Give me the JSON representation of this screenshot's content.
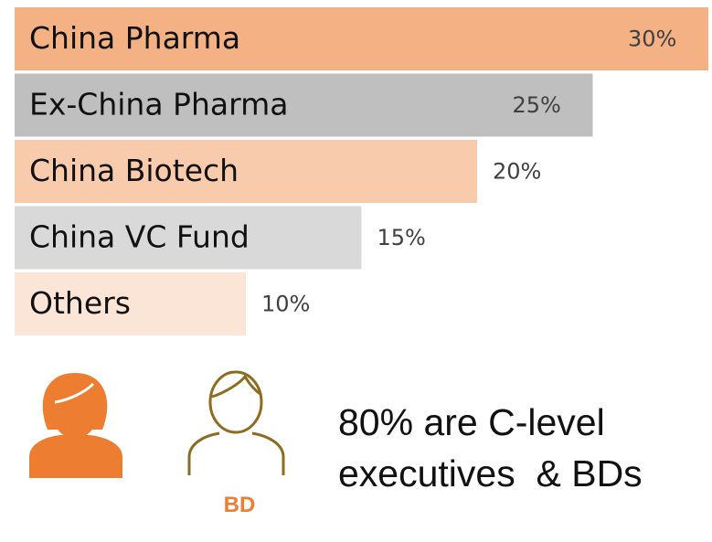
{
  "chart_data": {
    "type": "bar",
    "orientation": "horizontal",
    "categories": [
      "China Pharma",
      "Ex-China Pharma",
      "China Biotech",
      "China VC Fund",
      "Others"
    ],
    "values": [
      30,
      25,
      20,
      15,
      10
    ],
    "value_labels": [
      "30%",
      "25%",
      "20%",
      "15%",
      "10%"
    ],
    "colors": [
      "#f4b183",
      "#bfbfbf",
      "#f8cbad",
      "#d9d9d9",
      "#fbe5d6"
    ],
    "annotation_lines": [
      "80% are C-level",
      "executives  & BDs"
    ],
    "icon_label": "BD"
  }
}
